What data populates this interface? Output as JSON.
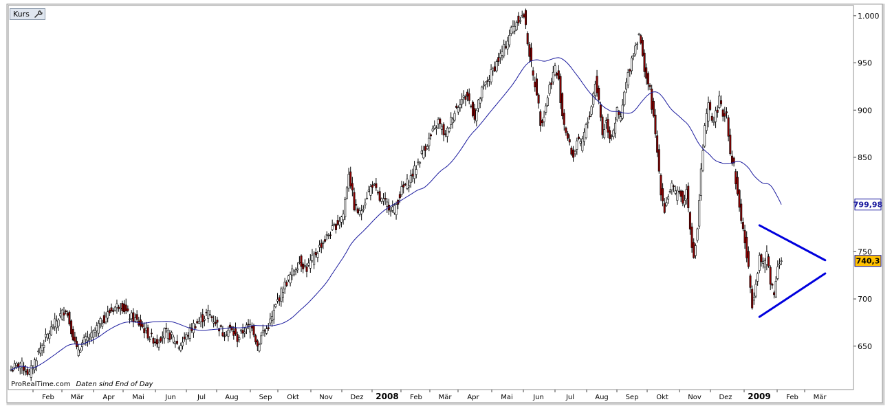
{
  "toolbar": {
    "tab_label": "Kurs",
    "settings_icon": "wrench-icon"
  },
  "credit": {
    "source": "ProRealTime.com",
    "note": "Daten sind End of Day"
  },
  "colors": {
    "candle_up": "#ffffff",
    "candle_down": "#8b0000",
    "wick": "#000000",
    "moving_average": "#1a1a9e",
    "triangle": "#0000dd",
    "ma_badge": "#ffffff",
    "price_badge": "#ffc000"
  },
  "chart_data": {
    "type": "candlestick",
    "x_tick_labels": [
      "Feb",
      "Mär",
      "Apr",
      "Mai",
      "Jun",
      "Jul",
      "Aug",
      "Sep",
      "Okt",
      "Nov",
      "Dez",
      "2008",
      "Feb",
      "Mär",
      "Apr",
      "Mai",
      "Jun",
      "Jul",
      "Aug",
      "Sep",
      "Okt",
      "Nov",
      "Dez",
      "2009",
      "Feb",
      "Mär"
    ],
    "y_tick_labels": [
      "1.000",
      "950",
      "900",
      "850",
      "750",
      "700",
      "650"
    ],
    "y_ticks": [
      1000,
      950,
      900,
      850,
      750,
      700,
      650
    ],
    "ylim": [
      620,
      1005
    ],
    "ma_value_label": "799,98",
    "ma_value": 799.98,
    "last_price_label": "740,3",
    "last_price": 740.3,
    "price_keypoints": [
      [
        0,
        625
      ],
      [
        5,
        632
      ],
      [
        10,
        620
      ],
      [
        16,
        648
      ],
      [
        22,
        668
      ],
      [
        26,
        680
      ],
      [
        30,
        690
      ],
      [
        33,
        668
      ],
      [
        36,
        645
      ],
      [
        40,
        655
      ],
      [
        44,
        660
      ],
      [
        48,
        672
      ],
      [
        52,
        682
      ],
      [
        56,
        690
      ],
      [
        60,
        695
      ],
      [
        64,
        683
      ],
      [
        68,
        678
      ],
      [
        72,
        670
      ],
      [
        76,
        660
      ],
      [
        80,
        655
      ],
      [
        84,
        665
      ],
      [
        88,
        660
      ],
      [
        92,
        650
      ],
      [
        96,
        660
      ],
      [
        100,
        672
      ],
      [
        104,
        678
      ],
      [
        108,
        685
      ],
      [
        112,
        676
      ],
      [
        116,
        664
      ],
      [
        120,
        668
      ],
      [
        124,
        658
      ],
      [
        128,
        668
      ],
      [
        132,
        673
      ],
      [
        135,
        650
      ],
      [
        138,
        665
      ],
      [
        140,
        668
      ],
      [
        143,
        680
      ],
      [
        146,
        698
      ],
      [
        150,
        715
      ],
      [
        154,
        728
      ],
      [
        158,
        740
      ],
      [
        162,
        732
      ],
      [
        166,
        745
      ],
      [
        170,
        758
      ],
      [
        174,
        768
      ],
      [
        178,
        778
      ],
      [
        182,
        790
      ],
      [
        185,
        835
      ],
      [
        188,
        798
      ],
      [
        191,
        790
      ],
      [
        195,
        810
      ],
      [
        198,
        822
      ],
      [
        202,
        805
      ],
      [
        206,
        800
      ],
      [
        210,
        795
      ],
      [
        214,
        815
      ],
      [
        218,
        825
      ],
      [
        222,
        840
      ],
      [
        226,
        858
      ],
      [
        230,
        872
      ],
      [
        234,
        888
      ],
      [
        238,
        872
      ],
      [
        242,
        895
      ],
      [
        246,
        910
      ],
      [
        250,
        915
      ],
      [
        254,
        893
      ],
      [
        258,
        920
      ],
      [
        262,
        935
      ],
      [
        266,
        950
      ],
      [
        270,
        965
      ],
      [
        274,
        985
      ],
      [
        278,
        997
      ],
      [
        281,
        1000
      ],
      [
        284,
        960
      ],
      [
        286,
        935
      ],
      [
        288,
        920
      ],
      [
        290,
        888
      ],
      [
        292,
        895
      ],
      [
        295,
        925
      ],
      [
        298,
        945
      ],
      [
        300,
        930
      ],
      [
        302,
        895
      ],
      [
        304,
        878
      ],
      [
        306,
        862
      ],
      [
        308,
        850
      ],
      [
        310,
        868
      ],
      [
        312,
        862
      ],
      [
        314,
        875
      ],
      [
        316,
        888
      ],
      [
        318,
        905
      ],
      [
        320,
        930
      ],
      [
        322,
        910
      ],
      [
        324,
        875
      ],
      [
        326,
        888
      ],
      [
        328,
        872
      ],
      [
        330,
        880
      ],
      [
        332,
        898
      ],
      [
        334,
        890
      ],
      [
        336,
        918
      ],
      [
        338,
        937
      ],
      [
        340,
        955
      ],
      [
        342,
        968
      ],
      [
        344,
        982
      ],
      [
        346,
        955
      ],
      [
        348,
        935
      ],
      [
        350,
        920
      ],
      [
        352,
        890
      ],
      [
        354,
        855
      ],
      [
        356,
        815
      ],
      [
        358,
        795
      ],
      [
        360,
        810
      ],
      [
        362,
        820
      ],
      [
        364,
        810
      ],
      [
        366,
        818
      ],
      [
        368,
        800
      ],
      [
        370,
        815
      ],
      [
        372,
        778
      ],
      [
        374,
        740
      ],
      [
        376,
        775
      ],
      [
        378,
        835
      ],
      [
        380,
        880
      ],
      [
        382,
        905
      ],
      [
        384,
        890
      ],
      [
        386,
        895
      ],
      [
        388,
        910
      ],
      [
        390,
        895
      ],
      [
        392,
        898
      ],
      [
        394,
        855
      ],
      [
        396,
        840
      ],
      [
        398,
        810
      ],
      [
        400,
        785
      ],
      [
        402,
        760
      ],
      [
        404,
        730
      ],
      [
        406,
        695
      ],
      [
        408,
        718
      ],
      [
        410,
        745
      ],
      [
        412,
        735
      ],
      [
        414,
        748
      ],
      [
        416,
        720
      ],
      [
        418,
        705
      ],
      [
        420,
        738
      ],
      [
        422,
        740.3
      ]
    ],
    "triangle_upper": [
      [
        410,
        778
      ],
      [
        446,
        741
      ]
    ],
    "triangle_lower": [
      [
        410,
        681
      ],
      [
        446,
        727
      ]
    ]
  }
}
